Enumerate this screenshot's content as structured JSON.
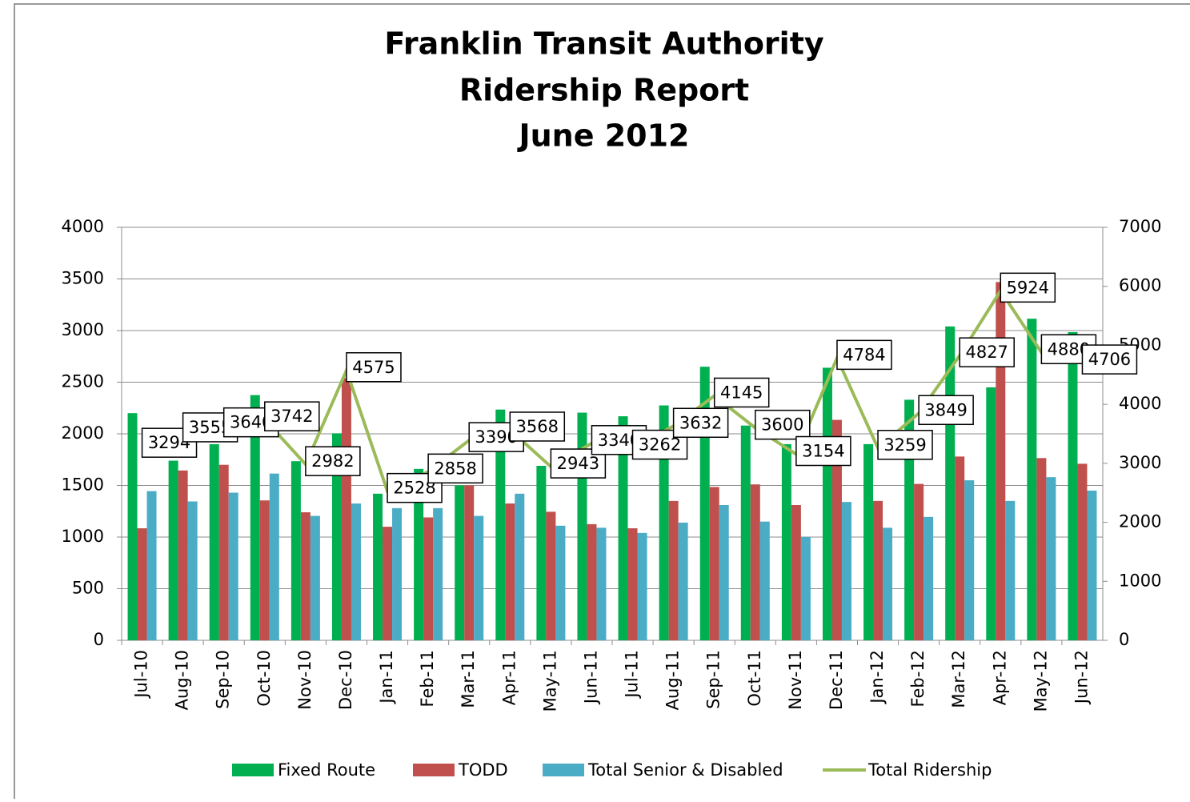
{
  "chart_data": {
    "type": "bar-line",
    "title": [
      "Franklin Transit Authority",
      "Ridership Report",
      "June 2012"
    ],
    "categories": [
      "Jul-10",
      "Aug-10",
      "Sep-10",
      "Oct-10",
      "Nov-10",
      "Dec-10",
      "Jan-11",
      "Feb-11",
      "Mar-11",
      "Apr-11",
      "May-11",
      "Jun-11",
      "Jul-11",
      "Aug-11",
      "Sep-11",
      "Oct-11",
      "Nov-11",
      "Dec-11",
      "Jan-12",
      "Feb-12",
      "Mar-12",
      "Apr-12",
      "May-12",
      "Jun-12"
    ],
    "series": [
      {
        "name": "Fixed Route",
        "color": "#00b050",
        "type": "bar",
        "values": [
          2200,
          1740,
          1900,
          2375,
          1735,
          2005,
          1420,
          1660,
          1500,
          2235,
          1690,
          2205,
          2170,
          2275,
          2650,
          2080,
          1900,
          2640,
          1900,
          2330,
          3040,
          2450,
          3115,
          2985
        ]
      },
      {
        "name": "TODD",
        "color": "#c0504d",
        "type": "bar",
        "values": [
          1085,
          1645,
          1700,
          1355,
          1240,
          2540,
          1100,
          1190,
          1500,
          1325,
          1245,
          1125,
          1085,
          1350,
          1485,
          1510,
          1310,
          2135,
          1350,
          1515,
          1780,
          3470,
          1765,
          1710
        ]
      },
      {
        "name": "Total Senior & Disabled",
        "color": "#4bacc6",
        "type": "bar",
        "values": [
          1445,
          1345,
          1430,
          1615,
          1205,
          1325,
          1280,
          1280,
          1205,
          1420,
          1110,
          1090,
          1040,
          1140,
          1310,
          1150,
          1000,
          1340,
          1090,
          1195,
          1550,
          1350,
          1580,
          1450
        ]
      },
      {
        "name": "Total Ridership",
        "color": "#9bbb59",
        "type": "line",
        "axis": "y2",
        "values": [
          3294,
          3555,
          3640,
          3742,
          2982,
          4575,
          2528,
          2858,
          3390,
          3568,
          2943,
          3340,
          3262,
          3632,
          4145,
          3600,
          3154,
          4784,
          3259,
          3849,
          4827,
          5924,
          4880,
          4706
        ]
      }
    ],
    "ylim": [
      0,
      4000
    ],
    "yticks": [
      0,
      500,
      1000,
      1500,
      2000,
      2500,
      3000,
      3500,
      4000
    ],
    "y2lim": [
      0,
      7000
    ],
    "y2ticks": [
      0,
      1000,
      2000,
      3000,
      4000,
      5000,
      6000,
      7000
    ],
    "grid": true,
    "legend": "bottom"
  }
}
